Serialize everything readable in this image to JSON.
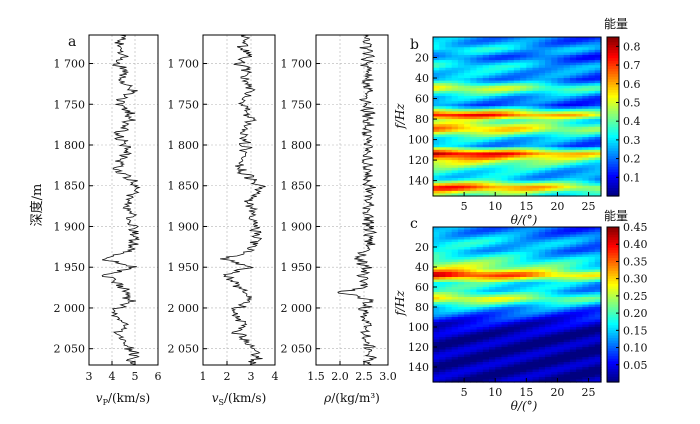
{
  "panel_labels": {
    "a": "a",
    "b": "b",
    "c": "c"
  },
  "colors": {
    "trace": "#111111",
    "axis": "#000000",
    "grid": "#b5b5b5"
  },
  "chart_data": [
    {
      "type": "line",
      "id": "vp",
      "xlabel_main": "v",
      "xlabel_sub": "P",
      "xlabel_rest": "/(km/s)",
      "xlim": [
        3,
        6
      ],
      "xticks": [
        "3",
        "4",
        "5",
        "6"
      ],
      "ylim": [
        1665,
        2070
      ],
      "ylabel": "深度/m",
      "yticks": [
        "1 700",
        "1 750",
        "1 800",
        "1 850",
        "1 900",
        "1 950",
        "2 000",
        "2 050"
      ],
      "depth": [
        1665,
        1680,
        1690,
        1700,
        1710,
        1720,
        1735,
        1745,
        1760,
        1770,
        1785,
        1800,
        1815,
        1830,
        1845,
        1855,
        1870,
        1885,
        1900,
        1915,
        1930,
        1940,
        1950,
        1960,
        1975,
        1990,
        2005,
        2020,
        2030,
        2045,
        2060,
        2068
      ],
      "values": [
        4.5,
        4.3,
        4.6,
        4.2,
        4.6,
        4.4,
        4.9,
        4.3,
        4.7,
        4.8,
        4.3,
        4.6,
        4.5,
        4.2,
        4.9,
        5.2,
        4.6,
        4.8,
        4.9,
        5.0,
        4.7,
        3.6,
        4.9,
        3.7,
        4.5,
        4.8,
        4.1,
        4.6,
        4.3,
        4.7,
        5.0,
        4.8
      ]
    },
    {
      "type": "line",
      "id": "vs",
      "xlabel_main": "v",
      "xlabel_sub": "S",
      "xlabel_rest": "/(km/s)",
      "xlim": [
        1,
        4
      ],
      "xticks": [
        "1",
        "2",
        "3",
        "4"
      ],
      "ylim": [
        1665,
        2070
      ],
      "yticks": [
        "1 700",
        "1 750",
        "1 800",
        "1 850",
        "1 900",
        "1 950",
        "2 000",
        "2 050"
      ],
      "depth": [
        1665,
        1680,
        1690,
        1700,
        1710,
        1720,
        1735,
        1745,
        1760,
        1770,
        1785,
        1800,
        1815,
        1830,
        1845,
        1855,
        1870,
        1885,
        1900,
        1915,
        1930,
        1940,
        1950,
        1960,
        1975,
        1990,
        2005,
        2020,
        2030,
        2045,
        2060,
        2068
      ],
      "values": [
        2.8,
        2.6,
        3.0,
        2.5,
        2.9,
        2.7,
        3.1,
        2.6,
        2.9,
        3.0,
        2.6,
        2.8,
        2.7,
        2.5,
        3.2,
        3.4,
        2.9,
        3.1,
        3.2,
        3.3,
        2.9,
        1.9,
        3.0,
        1.9,
        2.6,
        3.0,
        2.2,
        2.8,
        2.4,
        2.9,
        3.3,
        3.1
      ]
    },
    {
      "type": "line",
      "id": "rho",
      "xlabel_main": "ρ",
      "xlabel_rest": "/(kg/m³)",
      "xlim": [
        1.5,
        3.0
      ],
      "xticks": [
        "1.5",
        "2.0",
        "2.5",
        "3.0"
      ],
      "ylim": [
        1665,
        2070
      ],
      "yticks": [
        "1 700",
        "1 750",
        "1 800",
        "1 850",
        "1 900",
        "1 950",
        "2 000",
        "2 050"
      ],
      "depth": [
        1665,
        1680,
        1690,
        1700,
        1710,
        1720,
        1735,
        1745,
        1760,
        1770,
        1785,
        1800,
        1815,
        1830,
        1845,
        1855,
        1870,
        1885,
        1900,
        1915,
        1930,
        1940,
        1950,
        1960,
        1975,
        1980,
        1990,
        2005,
        2020,
        2030,
        2045,
        2060,
        2068
      ],
      "values": [
        2.58,
        2.56,
        2.6,
        2.55,
        2.59,
        2.57,
        2.61,
        2.55,
        2.58,
        2.6,
        2.56,
        2.58,
        2.57,
        2.54,
        2.62,
        2.63,
        2.58,
        2.6,
        2.61,
        2.62,
        2.58,
        2.35,
        2.6,
        2.4,
        2.56,
        1.95,
        2.59,
        2.5,
        2.57,
        2.52,
        2.58,
        2.62,
        2.6
      ]
    },
    {
      "type": "heatmap",
      "id": "b",
      "xlabel": "θ/(°)",
      "ylabel": "f/Hz",
      "xlim": [
        0,
        27
      ],
      "xticks": [
        "5",
        "10",
        "15",
        "20",
        "25"
      ],
      "ylim": [
        0,
        155
      ],
      "yticks": [
        "20",
        "40",
        "60",
        "80",
        "100",
        "120",
        "140"
      ],
      "colorbar": {
        "label": "能量",
        "min": 0.0,
        "max": 0.85,
        "ticks": [
          "0.1",
          "0.2",
          "0.3",
          "0.4",
          "0.5",
          "0.6",
          "0.7",
          "0.8"
        ]
      },
      "bands": [
        {
          "f": 5,
          "v": 0.25
        },
        {
          "f": 12,
          "v": 0.35
        },
        {
          "f": 20,
          "v": 0.2
        },
        {
          "f": 28,
          "v": 0.35
        },
        {
          "f": 35,
          "v": 0.3
        },
        {
          "f": 42,
          "v": 0.25
        },
        {
          "f": 50,
          "v": 0.55
        },
        {
          "f": 58,
          "v": 0.3
        },
        {
          "f": 67,
          "v": 0.2
        },
        {
          "f": 76,
          "v": 0.78
        },
        {
          "f": 82,
          "v": 0.45
        },
        {
          "f": 90,
          "v": 0.65
        },
        {
          "f": 98,
          "v": 0.35
        },
        {
          "f": 106,
          "v": 0.25
        },
        {
          "f": 114,
          "v": 0.82
        },
        {
          "f": 121,
          "v": 0.55
        },
        {
          "f": 130,
          "v": 0.35
        },
        {
          "f": 138,
          "v": 0.3
        },
        {
          "f": 147,
          "v": 0.75
        },
        {
          "f": 153,
          "v": 0.45
        }
      ]
    },
    {
      "type": "heatmap",
      "id": "c",
      "xlabel": "θ/(°)",
      "ylabel": "f/Hz",
      "xlim": [
        0,
        27
      ],
      "xticks": [
        "5",
        "10",
        "15",
        "20",
        "25"
      ],
      "ylim": [
        0,
        155
      ],
      "yticks": [
        "20",
        "40",
        "60",
        "80",
        "100",
        "120",
        "140"
      ],
      "colorbar": {
        "label": "能量",
        "min": 0.0,
        "max": 0.45,
        "ticks": [
          "0.05",
          "0.10",
          "0.15",
          "0.20",
          "0.25",
          "0.30",
          "0.35",
          "0.40",
          "0.45"
        ]
      },
      "bands": [
        {
          "f": 5,
          "v": 0.12
        },
        {
          "f": 15,
          "v": 0.18
        },
        {
          "f": 24,
          "v": 0.15
        },
        {
          "f": 33,
          "v": 0.22
        },
        {
          "f": 42,
          "v": 0.28
        },
        {
          "f": 48,
          "v": 0.42
        },
        {
          "f": 56,
          "v": 0.2
        },
        {
          "f": 64,
          "v": 0.18
        },
        {
          "f": 72,
          "v": 0.3
        },
        {
          "f": 80,
          "v": 0.16
        },
        {
          "f": 88,
          "v": 0.1
        },
        {
          "f": 96,
          "v": 0.05
        },
        {
          "f": 110,
          "v": 0.02
        },
        {
          "f": 130,
          "v": 0.02
        },
        {
          "f": 150,
          "v": 0.02
        }
      ]
    }
  ]
}
